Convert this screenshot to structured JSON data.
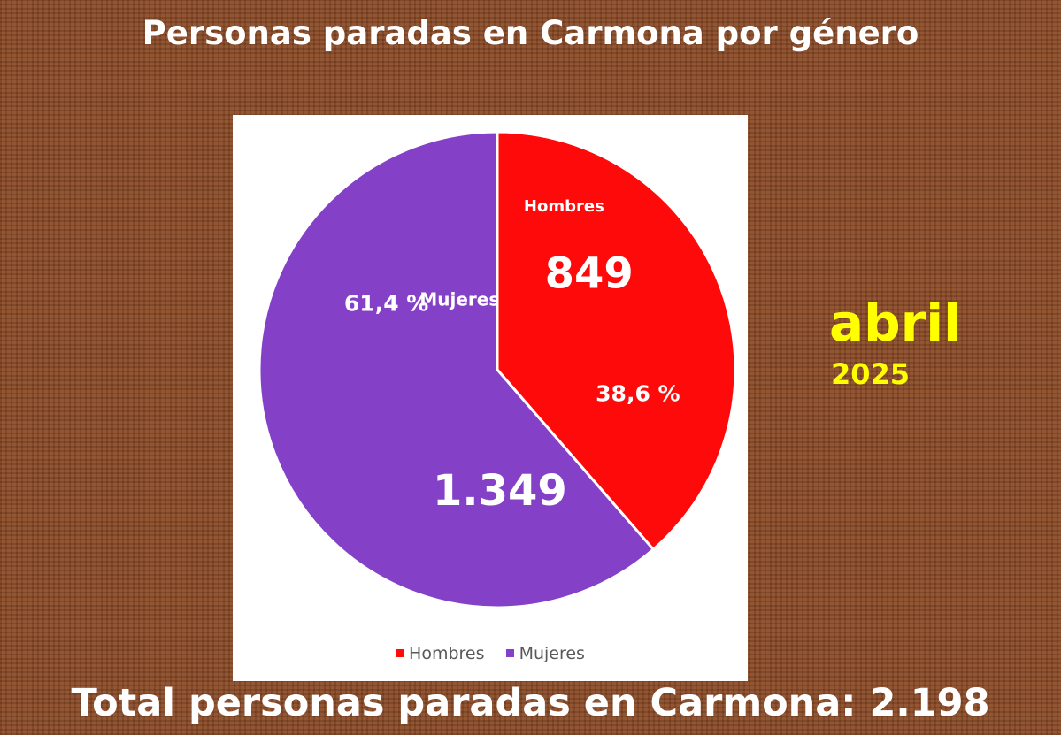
{
  "title": "Personas paradas en Carmona por género",
  "date": {
    "month": "abril",
    "year": "2025"
  },
  "footer": "Total personas paradas en Carmona: 2.198",
  "colors": {
    "background": "#8a4a26",
    "hombres": "#ff0a0a",
    "mujeres": "#8441c7",
    "date_text": "#ffff00"
  },
  "chart_data": {
    "type": "pie",
    "title": "Personas paradas en Carmona por género",
    "categories": [
      "Hombres",
      "Mujeres"
    ],
    "values": [
      849,
      1349
    ],
    "value_labels": [
      "849",
      "1.349"
    ],
    "percent_labels": [
      "38,6 %",
      "61,4 %"
    ],
    "percents": [
      38.6,
      61.4
    ],
    "legend": [
      "Hombres",
      "Mujeres"
    ],
    "legend_position": "bottom"
  }
}
